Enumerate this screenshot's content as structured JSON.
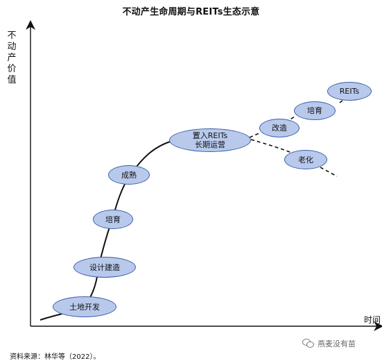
{
  "title": "不动产生命周期与REITs生态示意",
  "axes": {
    "y_label": "不动产价值",
    "x_label": "时间"
  },
  "nodes": [
    {
      "id": "land",
      "label": "土地开发"
    },
    {
      "id": "design",
      "label": "设计建造"
    },
    {
      "id": "cultivate1",
      "label": "培育"
    },
    {
      "id": "mature",
      "label": "成熟"
    },
    {
      "id": "reits_ops",
      "label": "置入REITs\n长期运营"
    },
    {
      "id": "renovate",
      "label": "改造"
    },
    {
      "id": "cultivate2",
      "label": "培育"
    },
    {
      "id": "reits",
      "label": "REITs"
    },
    {
      "id": "aging",
      "label": "老化"
    }
  ],
  "source": "资料来源：林华等（2022）。",
  "watermark": "燕麦没有苗",
  "colors": {
    "node_fill": "#b8c9ec",
    "node_stroke": "#3a5fa8",
    "line": "#111111"
  }
}
